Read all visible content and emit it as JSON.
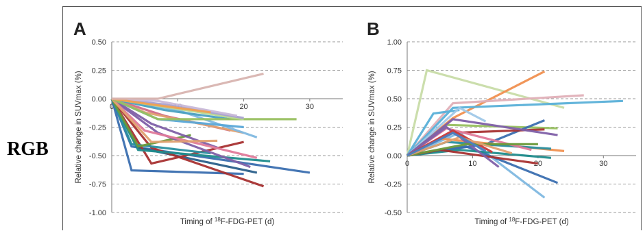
{
  "side_label": "RGB",
  "chart_data": [
    {
      "type": "line",
      "panel_label": "A",
      "xlabel_pre": "Timing of ",
      "xlabel_sup": "18",
      "xlabel_post": "F-FDG-PET (d)",
      "ylabel": "Relative change in SUVmax (%)",
      "xlim": [
        0,
        35
      ],
      "ylim": [
        -1.0,
        0.5
      ],
      "xticks": [
        "0",
        "10",
        "20",
        "30"
      ],
      "yticks": [
        "0.50",
        "0.25",
        "0.00",
        "-0.25",
        "-0.50",
        "-0.75",
        "-1.00"
      ],
      "grid": true,
      "series": [
        {
          "color": "#3b6fb0",
          "x": [
            0,
            3,
            20
          ],
          "y": [
            0,
            -0.63,
            -0.66
          ]
        },
        {
          "color": "#3b6fb0",
          "x": [
            0,
            3,
            30
          ],
          "y": [
            0,
            -0.42,
            -0.65
          ]
        },
        {
          "color": "#2a5f8a",
          "x": [
            0,
            4,
            22
          ],
          "y": [
            0,
            -0.43,
            -0.65
          ]
        },
        {
          "color": "#a83232",
          "x": [
            0,
            6,
            23
          ],
          "y": [
            0,
            -0.43,
            -0.77
          ]
        },
        {
          "color": "#a83232",
          "x": [
            0,
            6,
            20
          ],
          "y": [
            0,
            -0.57,
            -0.38
          ]
        },
        {
          "color": "#1f8c8c",
          "x": [
            0,
            4,
            24
          ],
          "y": [
            0,
            -0.45,
            -0.55
          ]
        },
        {
          "color": "#2a8fa0",
          "x": [
            0,
            3,
            15
          ],
          "y": [
            0,
            -0.4,
            -0.48
          ]
        },
        {
          "color": "#6a9a3a",
          "x": [
            0,
            4,
            12
          ],
          "y": [
            0,
            -0.42,
            -0.32
          ]
        },
        {
          "color": "#8060a8",
          "x": [
            0,
            7,
            21
          ],
          "y": [
            0,
            -0.3,
            -0.6
          ]
        },
        {
          "color": "#8060a8",
          "x": [
            0,
            6,
            16
          ],
          "y": [
            0,
            -0.22,
            -0.43
          ]
        },
        {
          "color": "#e07a9a",
          "x": [
            0,
            5,
            22
          ],
          "y": [
            0,
            -0.28,
            -0.52
          ]
        },
        {
          "color": "#d06a8a",
          "x": [
            0,
            8,
            18
          ],
          "y": [
            0,
            -0.15,
            -0.28
          ]
        },
        {
          "color": "#e0a070",
          "x": [
            0,
            6,
            16
          ],
          "y": [
            0,
            -0.38,
            -0.37
          ]
        },
        {
          "color": "#e0a070",
          "x": [
            0,
            5,
            20
          ],
          "y": [
            0,
            -0.12,
            -0.3
          ]
        },
        {
          "color": "#7fb8e0",
          "x": [
            0,
            10,
            22
          ],
          "y": [
            0,
            -0.1,
            -0.34
          ]
        },
        {
          "color": "#5aa8d8",
          "x": [
            0,
            7,
            20
          ],
          "y": [
            0,
            -0.18,
            -0.25
          ]
        },
        {
          "color": "#4aa0c0",
          "x": [
            0,
            8,
            18
          ],
          "y": [
            0,
            -0.1,
            -0.18
          ]
        },
        {
          "color": "#98c060",
          "x": [
            0,
            7,
            28
          ],
          "y": [
            0,
            -0.18,
            -0.18
          ]
        },
        {
          "color": "#b8d890",
          "x": [
            0,
            9,
            20
          ],
          "y": [
            0,
            -0.08,
            -0.18
          ]
        },
        {
          "color": "#a8a0d0",
          "x": [
            0,
            8,
            20
          ],
          "y": [
            0,
            -0.05,
            -0.17
          ]
        },
        {
          "color": "#c8b8d8",
          "x": [
            0,
            7,
            19
          ],
          "y": [
            0,
            -0.02,
            -0.15
          ]
        },
        {
          "color": "#f0a050",
          "x": [
            0,
            6,
            15
          ],
          "y": [
            0,
            -0.05,
            -0.12
          ]
        },
        {
          "color": "#d8b4b0",
          "x": [
            0,
            7,
            23
          ],
          "y": [
            0,
            0.0,
            0.22
          ]
        }
      ]
    },
    {
      "type": "line",
      "panel_label": "B",
      "xlabel_pre": "Timing of ",
      "xlabel_sup": "18",
      "xlabel_post": "F-FDG-PET (d)",
      "ylabel": "Relative change in SUVmax (%)",
      "xlim": [
        0,
        35
      ],
      "ylim": [
        -0.5,
        1.0
      ],
      "xticks": [
        "0",
        "10",
        "20",
        "30"
      ],
      "yticks": [
        "1.00",
        "0.75",
        "0.50",
        "0.25",
        "0.00",
        "-0.25",
        "-0.50"
      ],
      "grid": true,
      "series": [
        {
          "color": "#c8dca8",
          "x": [
            0,
            3,
            24
          ],
          "y": [
            0,
            0.75,
            0.42
          ]
        },
        {
          "color": "#f09050",
          "x": [
            0,
            7,
            21
          ],
          "y": [
            0,
            0.33,
            0.74
          ]
        },
        {
          "color": "#e0b0b8",
          "x": [
            0,
            7,
            27
          ],
          "y": [
            0,
            0.46,
            0.53
          ]
        },
        {
          "color": "#5ab0d8",
          "x": [
            0,
            7,
            33
          ],
          "y": [
            0,
            0.42,
            0.48
          ]
        },
        {
          "color": "#5ab0d8",
          "x": [
            0,
            4,
            8
          ],
          "y": [
            0,
            0.37,
            0.4
          ]
        },
        {
          "color": "#a0c8e8",
          "x": [
            0,
            8,
            12
          ],
          "y": [
            0,
            0.42,
            0.3
          ]
        },
        {
          "color": "#98c060",
          "x": [
            0,
            6,
            23
          ],
          "y": [
            0,
            0.27,
            0.24
          ]
        },
        {
          "color": "#3b6fb0",
          "x": [
            0,
            12,
            21
          ],
          "y": [
            0,
            0.1,
            0.31
          ]
        },
        {
          "color": "#a83232",
          "x": [
            0,
            7,
            21
          ],
          "y": [
            0,
            0.2,
            0.23
          ]
        },
        {
          "color": "#8060a8",
          "x": [
            0,
            7,
            23
          ],
          "y": [
            0,
            0.32,
            0.18
          ]
        },
        {
          "color": "#7fb8e0",
          "x": [
            0,
            8,
            21
          ],
          "y": [
            0,
            0.2,
            -0.37
          ]
        },
        {
          "color": "#3b6fb0",
          "x": [
            0,
            9,
            23
          ],
          "y": [
            0,
            0.08,
            -0.24
          ]
        },
        {
          "color": "#f09050",
          "x": [
            0,
            5,
            24
          ],
          "y": [
            0,
            0.15,
            0.04
          ]
        },
        {
          "color": "#2a8fa0",
          "x": [
            0,
            6,
            22
          ],
          "y": [
            0,
            0.12,
            0.06
          ]
        },
        {
          "color": "#1f8c8c",
          "x": [
            0,
            8,
            22
          ],
          "y": [
            0,
            0.05,
            -0.02
          ]
        },
        {
          "color": "#a83232",
          "x": [
            0,
            5,
            20
          ],
          "y": [
            0,
            0.05,
            -0.07
          ]
        },
        {
          "color": "#e07a9a",
          "x": [
            0,
            6,
            19
          ],
          "y": [
            0,
            0.24,
            0.05
          ]
        },
        {
          "color": "#8060a8",
          "x": [
            0,
            6,
            14
          ],
          "y": [
            0,
            0.25,
            -0.1
          ]
        },
        {
          "color": "#c83a3a",
          "x": [
            0,
            7,
            13
          ],
          "y": [
            0,
            0.22,
            0.03
          ]
        },
        {
          "color": "#6a9a3a",
          "x": [
            0,
            9,
            20
          ],
          "y": [
            0,
            0.1,
            0.1
          ]
        },
        {
          "color": "#e0a070",
          "x": [
            0,
            8,
            16
          ],
          "y": [
            0,
            0.16,
            0.02
          ]
        },
        {
          "color": "#4a80c0",
          "x": [
            0,
            7,
            12
          ],
          "y": [
            0,
            0.2,
            0.04
          ]
        }
      ]
    }
  ]
}
